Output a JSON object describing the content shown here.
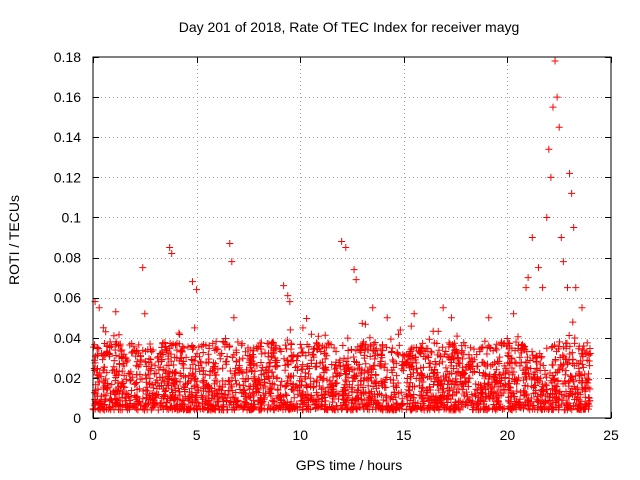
{
  "chart_data": {
    "type": "scatter",
    "title": "Day 201 of 2018, Rate Of TEC Index for receiver mayg",
    "xlabel": "GPS time / hours",
    "ylabel": "ROTI / TECUs",
    "xlim": [
      0,
      25
    ],
    "ylim": [
      0,
      0.18
    ],
    "xticks": [
      0,
      5,
      10,
      15,
      20,
      25
    ],
    "xtick_labels": [
      "0",
      "5",
      "10",
      "15",
      "20",
      "25"
    ],
    "yticks": [
      0,
      0.02,
      0.04,
      0.06,
      0.08,
      0.1,
      0.12,
      0.14,
      0.16,
      0.18
    ],
    "ytick_labels": [
      "0",
      "0.02",
      "0.04",
      "0.06",
      "0.08",
      "0.1",
      "0.12",
      "0.14",
      "0.16",
      "0.18"
    ],
    "grid": true,
    "marker": "+",
    "color": "#ff0000",
    "series": [
      {
        "name": "ROTI",
        "x": [
          0.1,
          0.3,
          0.5,
          1.1,
          2.4,
          2.5,
          3.7,
          3.8,
          4.8,
          5.0,
          6.6,
          6.7,
          6.8,
          9.2,
          9.4,
          9.5,
          12.0,
          12.2,
          12.6,
          12.7,
          13.5,
          14.2,
          15.5,
          16.9,
          17.3,
          19.1,
          20.3,
          20.9,
          21.0,
          21.2,
          21.5,
          21.7,
          21.9,
          22.0,
          22.1,
          22.2,
          22.3,
          22.4,
          22.5,
          22.6,
          22.7,
          22.9,
          23.0,
          23.1,
          23.2,
          23.3,
          23.6
        ],
        "y": [
          0.058,
          0.055,
          0.045,
          0.053,
          0.075,
          0.052,
          0.085,
          0.082,
          0.068,
          0.064,
          0.087,
          0.078,
          0.05,
          0.066,
          0.061,
          0.058,
          0.088,
          0.085,
          0.074,
          0.069,
          0.055,
          0.05,
          0.052,
          0.055,
          0.05,
          0.05,
          0.052,
          0.065,
          0.07,
          0.09,
          0.075,
          0.065,
          0.1,
          0.134,
          0.12,
          0.155,
          0.178,
          0.16,
          0.145,
          0.09,
          0.078,
          0.065,
          0.122,
          0.112,
          0.095,
          0.065,
          0.055
        ]
      }
    ]
  }
}
